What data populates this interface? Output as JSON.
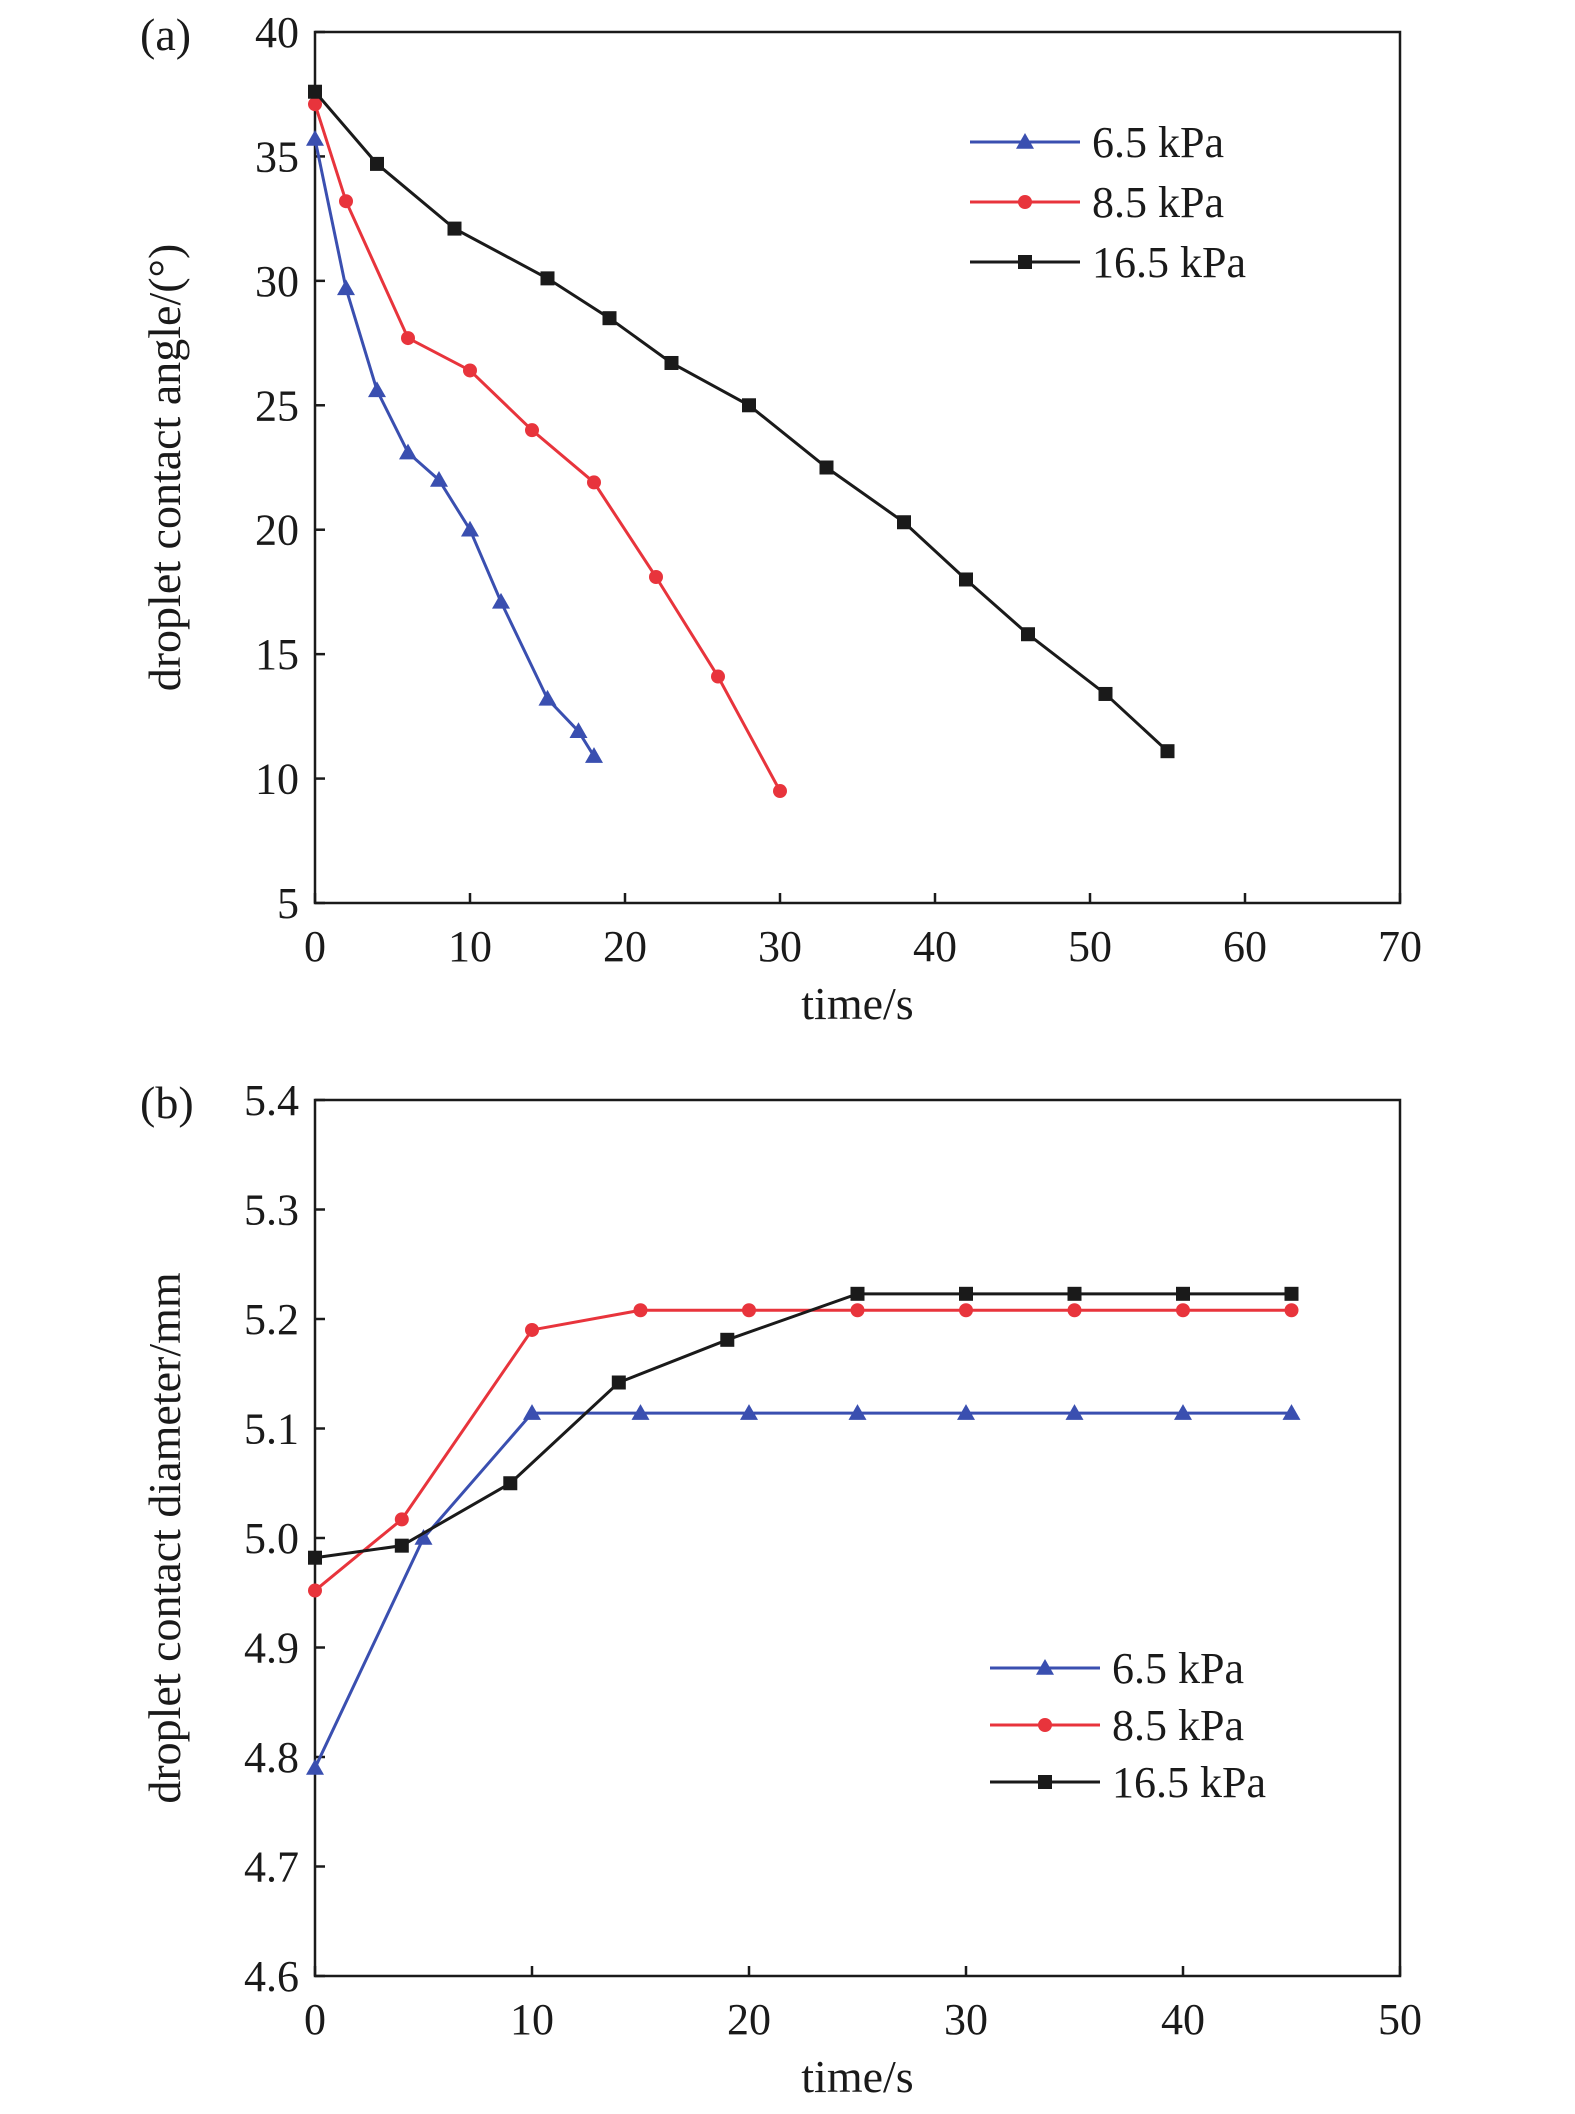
{
  "chart_data": [
    {
      "type": "line",
      "panel_label": "(a)",
      "xlabel": "time/s",
      "ylabel": "droplet contact angle/(°)",
      "xlim": [
        0,
        70
      ],
      "ylim": [
        5,
        40
      ],
      "xticks": [
        0,
        10,
        20,
        30,
        40,
        50,
        60,
        70
      ],
      "yticks": [
        5,
        10,
        15,
        20,
        25,
        30,
        35,
        40
      ],
      "grid": false,
      "legend_position": "top-right",
      "series": [
        {
          "name": "6.5 kPa",
          "color": "#3a4fb0",
          "marker": "triangle",
          "x": [
            0,
            2,
            4,
            6,
            8,
            10,
            12,
            15,
            17,
            18
          ],
          "y": [
            35.7,
            29.7,
            25.6,
            23.1,
            22.0,
            20.0,
            17.1,
            13.2,
            11.9,
            10.9
          ]
        },
        {
          "name": "8.5 kPa",
          "color": "#e8343c",
          "marker": "circle",
          "x": [
            0,
            2,
            6,
            10,
            14,
            18,
            22,
            26,
            30
          ],
          "y": [
            37.1,
            33.2,
            27.7,
            26.4,
            24.0,
            21.9,
            18.1,
            14.1,
            9.5
          ]
        },
        {
          "name": "16.5 kPa",
          "color": "#1a1a1a",
          "marker": "square",
          "x": [
            0,
            4,
            9,
            15,
            19,
            23,
            28,
            33,
            38,
            42,
            46,
            51,
            55
          ],
          "y": [
            37.6,
            34.7,
            32.1,
            30.1,
            28.5,
            26.7,
            25.0,
            22.5,
            20.3,
            18.0,
            15.8,
            13.4,
            11.1
          ]
        }
      ]
    },
    {
      "type": "line",
      "panel_label": "(b)",
      "xlabel": "time/s",
      "ylabel": "droplet contact diameter/mm",
      "xlim": [
        0,
        50
      ],
      "ylim": [
        4.6,
        5.4
      ],
      "xticks": [
        0,
        10,
        20,
        30,
        40,
        50
      ],
      "yticks": [
        4.6,
        4.7,
        4.8,
        4.9,
        5.0,
        5.1,
        5.2,
        5.3,
        5.4
      ],
      "ytick_decimals": 1,
      "grid": false,
      "legend_position": "bottom-right",
      "series": [
        {
          "name": "6.5 kPa",
          "color": "#3a4fb0",
          "marker": "triangle",
          "x": [
            0,
            5,
            10,
            15,
            20,
            25,
            30,
            35,
            40,
            45
          ],
          "y": [
            4.79,
            5.0,
            5.114,
            5.114,
            5.114,
            5.114,
            5.114,
            5.114,
            5.114,
            5.114
          ]
        },
        {
          "name": "8.5 kPa",
          "color": "#e8343c",
          "marker": "circle",
          "x": [
            0,
            4,
            10,
            15,
            20,
            25,
            30,
            35,
            40,
            45
          ],
          "y": [
            4.952,
            5.017,
            5.19,
            5.208,
            5.208,
            5.208,
            5.208,
            5.208,
            5.208,
            5.208
          ]
        },
        {
          "name": "16.5 kPa",
          "color": "#1a1a1a",
          "marker": "square",
          "x": [
            0,
            4,
            9,
            14,
            19,
            25,
            30,
            35,
            40,
            45
          ],
          "y": [
            4.982,
            4.993,
            5.05,
            5.142,
            5.181,
            5.223,
            5.223,
            5.223,
            5.223,
            5.223
          ]
        }
      ]
    }
  ]
}
